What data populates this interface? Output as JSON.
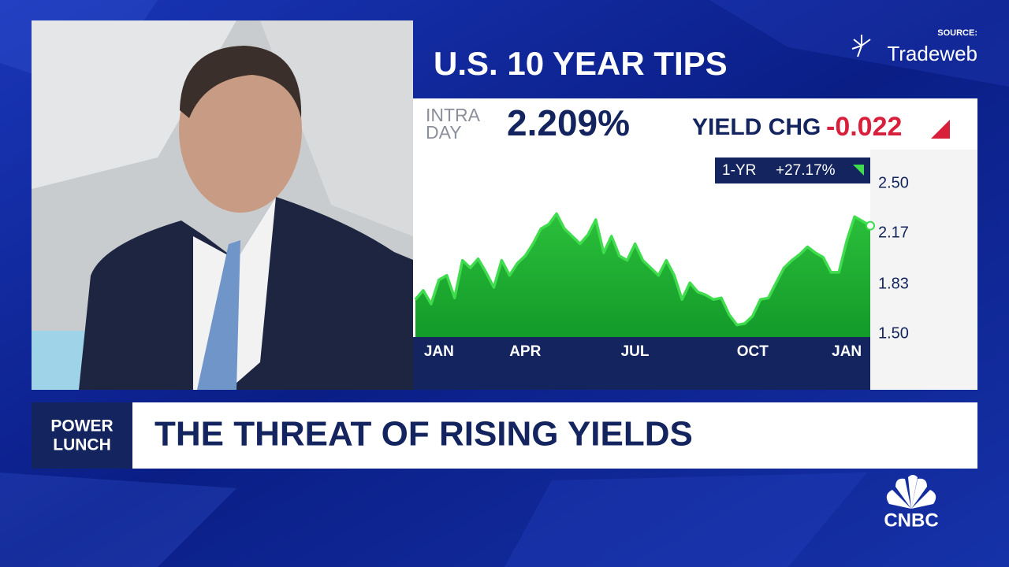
{
  "chart_data": {
    "type": "area",
    "title": "U.S. 10 YEAR TIPS",
    "source_label": "SOURCE:",
    "source": "Tradeweb",
    "intraday_label": [
      "INTRA",
      "DAY"
    ],
    "intraday_value": "2.209%",
    "change_label": "YIELD CHG",
    "change_value": "-0.022",
    "period_label": "1-YR",
    "period_change": "+27.17%",
    "categories": [
      null,
      null,
      null,
      "JAN",
      null,
      null,
      null,
      null,
      null,
      null,
      null,
      null,
      null,
      null,
      "APR",
      null,
      null,
      null,
      null,
      null,
      null,
      null,
      null,
      null,
      null,
      null,
      null,
      null,
      "JUL",
      null,
      null,
      null,
      null,
      null,
      null,
      null,
      null,
      null,
      null,
      null,
      null,
      null,
      null,
      "OCT",
      null,
      null,
      null,
      null,
      null,
      null,
      null,
      null,
      null,
      null,
      null,
      "JAN",
      null,
      null,
      null
    ],
    "series": [
      {
        "color": "#3fdc4d",
        "values": [
          1.73,
          1.79,
          1.7,
          1.86,
          1.89,
          1.74,
          1.99,
          1.94,
          2.0,
          1.91,
          1.81,
          1.99,
          1.89,
          1.97,
          2.02,
          2.1,
          2.2,
          2.23,
          2.3,
          2.2,
          2.15,
          2.1,
          2.16,
          2.26,
          2.04,
          2.15,
          2.02,
          1.99,
          2.1,
          1.99,
          1.94,
          1.89,
          1.99,
          1.89,
          1.73,
          1.84,
          1.78,
          1.76,
          1.73,
          1.74,
          1.63,
          1.56,
          1.57,
          1.62,
          1.73,
          1.74,
          1.84,
          1.94,
          1.99,
          2.03,
          2.08,
          2.04,
          2.01,
          1.91,
          1.91,
          2.12,
          2.28,
          2.25,
          2.22
        ]
      }
    ],
    "ylim": [
      1.48,
      2.7
    ],
    "yticks": [
      {
        "value": 1.5,
        "label": "1.50"
      },
      {
        "value": 1.83,
        "label": "1.83"
      },
      {
        "value": 2.17,
        "label": "2.17"
      },
      {
        "value": 2.5,
        "label": "2.50"
      }
    ]
  },
  "lower_third": {
    "show": [
      "POWER",
      "LUNCH"
    ],
    "headline": "THE THREAT OF RISING YIELDS"
  },
  "network": "CNBC"
}
